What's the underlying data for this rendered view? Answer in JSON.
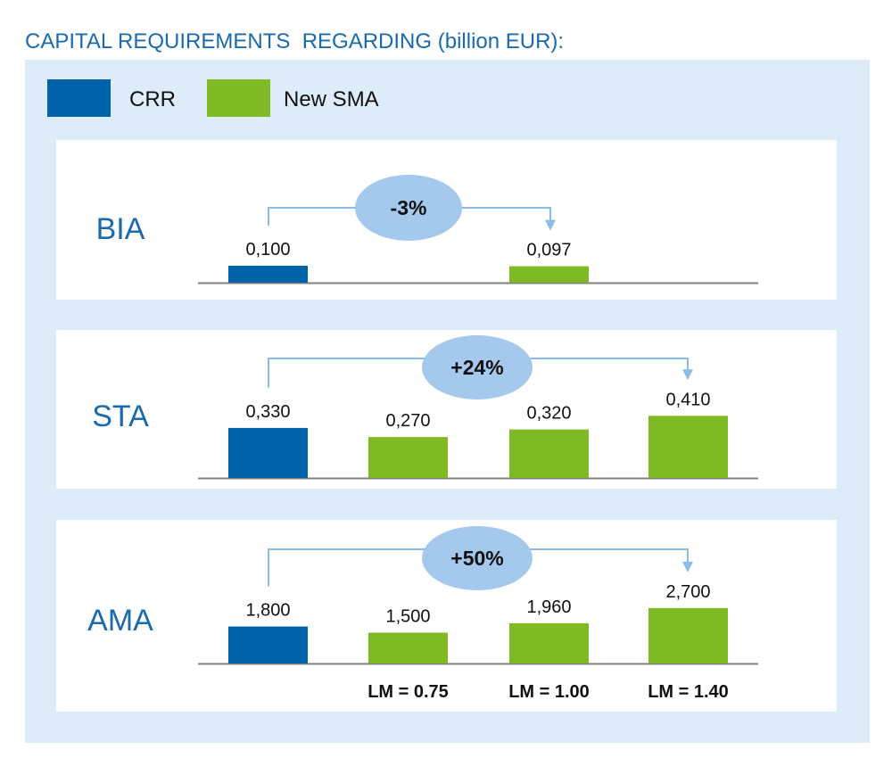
{
  "chart_data": {
    "type": "bar",
    "title": "CAPITAL REQUIREMENTS  REGARDING (billion EUR):",
    "legend": {
      "placement": "top-left",
      "items": [
        {
          "name": "CRR",
          "color": "#0062a8"
        },
        {
          "name": "New SMA",
          "color": "#7fba24"
        }
      ]
    },
    "panels": [
      {
        "label": "BIA",
        "change": "-3%",
        "bars": [
          {
            "series": "CRR",
            "value": 0.1,
            "label": "0,100",
            "category": ""
          },
          {
            "series": "New SMA",
            "value": 0.097,
            "label": "0,097",
            "category": ""
          }
        ]
      },
      {
        "label": "STA",
        "change": "+24%",
        "bars": [
          {
            "series": "CRR",
            "value": 0.33,
            "label": "0,330",
            "category": ""
          },
          {
            "series": "New SMA",
            "value": 0.27,
            "label": "0,270",
            "category": ""
          },
          {
            "series": "New SMA",
            "value": 0.32,
            "label": "0,320",
            "category": ""
          },
          {
            "series": "New SMA",
            "value": 0.41,
            "label": "0,410",
            "category": ""
          }
        ]
      },
      {
        "label": "AMA",
        "change": "+50%",
        "bars": [
          {
            "series": "CRR",
            "value": 1.8,
            "label": "1,800",
            "category": ""
          },
          {
            "series": "New SMA",
            "value": 1.5,
            "label": "1,500",
            "category": "LM = 0.75"
          },
          {
            "series": "New SMA",
            "value": 1.96,
            "label": "1,960",
            "category": "LM = 1.00"
          },
          {
            "series": "New SMA",
            "value": 2.7,
            "label": "2,700",
            "category": "LM = 1.40"
          }
        ]
      }
    ],
    "grid": false
  },
  "colors": {
    "title": "#1a6aad",
    "panel_label": "#1a6aad",
    "background": "#deebf8",
    "bubble": "#a5c9ec",
    "connector": "#8bbbe8"
  }
}
